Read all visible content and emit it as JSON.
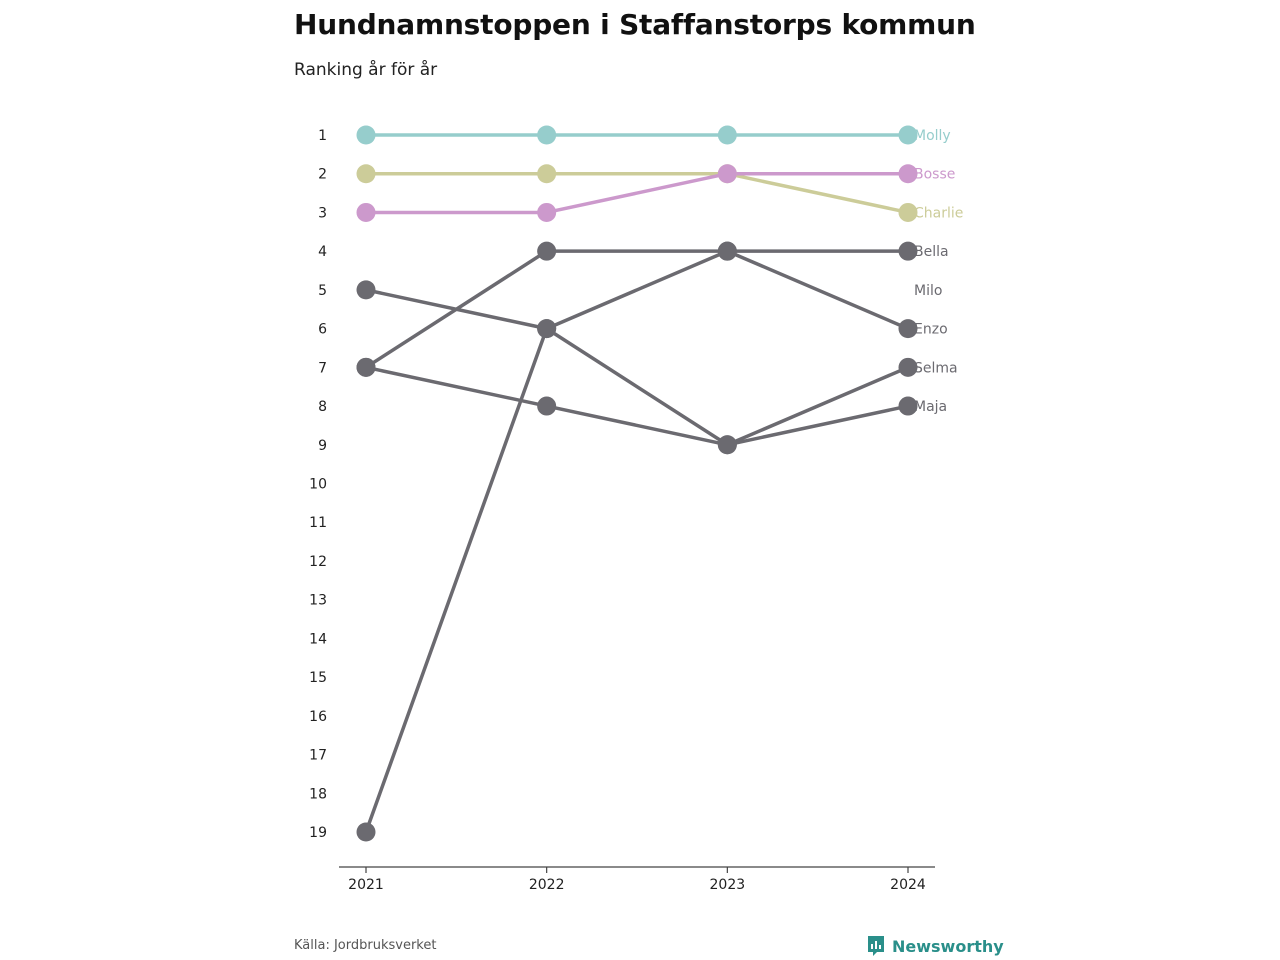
{
  "header": {
    "title": "Hundnamnstoppen i Staffanstorps kommun",
    "subtitle": "Ranking år för år"
  },
  "footer": {
    "source": "Källa: Jordbruksverket",
    "brand": "Newsworthy",
    "brand_icon": "bar-chart-icon",
    "brand_color": "#2a8f8a"
  },
  "chart_data": {
    "type": "line",
    "subtype": "bump",
    "x": [
      "2021",
      "2022",
      "2023",
      "2024"
    ],
    "y_ticks": [
      1,
      2,
      3,
      4,
      5,
      6,
      7,
      8,
      9,
      10,
      11,
      12,
      13,
      14,
      15,
      16,
      17,
      18,
      19
    ],
    "ylim": [
      1,
      19
    ],
    "y_inverted": true,
    "grid": false,
    "legend": "end-labels",
    "series": [
      {
        "name": "Molly",
        "color": "#96cdcc",
        "values": [
          1,
          1,
          1,
          1
        ]
      },
      {
        "name": "Bosse",
        "color": "#cc99cc",
        "values": [
          3,
          3,
          2,
          2
        ]
      },
      {
        "name": "Charlie",
        "color": "#cccc99",
        "values": [
          2,
          2,
          2,
          3
        ]
      },
      {
        "name": "Bella",
        "color": "#6b6a70",
        "values": [
          7,
          4,
          4,
          4
        ]
      },
      {
        "name": "Milo",
        "color": "#6b6a70",
        "values": [
          null,
          null,
          null,
          null
        ]
      },
      {
        "name": "Enzo",
        "color": "#6b6a70",
        "values": [
          19,
          6,
          4,
          6
        ]
      },
      {
        "name": "Selma",
        "color": "#6b6a70",
        "values": [
          5,
          6,
          9,
          7
        ]
      },
      {
        "name": "Maja",
        "color": "#6b6a70",
        "values": [
          7,
          8,
          9,
          8
        ]
      }
    ],
    "end_labels": [
      {
        "name": "Molly",
        "rank": 1
      },
      {
        "name": "Bosse",
        "rank": 2
      },
      {
        "name": "Charlie",
        "rank": 3
      },
      {
        "name": "Bella",
        "rank": 4
      },
      {
        "name": "Milo",
        "rank": 5
      },
      {
        "name": "Enzo",
        "rank": 6
      },
      {
        "name": "Selma",
        "rank": 7
      },
      {
        "name": "Maja",
        "rank": 8
      }
    ]
  }
}
